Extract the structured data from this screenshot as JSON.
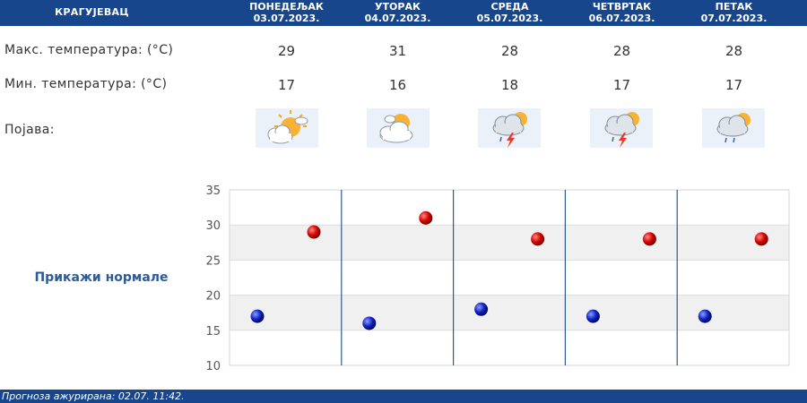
{
  "header": {
    "city": "КРАГУЈЕВАЦ"
  },
  "days": [
    {
      "name": "ПОНЕДЕЉАК",
      "date": "03.07.2023.",
      "max": "29",
      "min": "17",
      "icon": "sun-cloud-icon"
    },
    {
      "name": "УТОРАК",
      "date": "04.07.2023.",
      "max": "31",
      "min": "16",
      "icon": "cloud-sun-icon"
    },
    {
      "name": "СРЕДА",
      "date": "05.07.2023.",
      "max": "28",
      "min": "18",
      "icon": "thunderstorm-icon"
    },
    {
      "name": "ЧЕТВРТАК",
      "date": "06.07.2023.",
      "max": "28",
      "min": "17",
      "icon": "thunderstorm-icon"
    },
    {
      "name": "ПЕТАК",
      "date": "07.07.2023.",
      "max": "28",
      "min": "17",
      "icon": "rain-shower-icon"
    }
  ],
  "labels": {
    "max_temp": "Макс. температура: (°C)",
    "min_temp": "Мин. температура: (°C)",
    "phenomenon": "Појава:"
  },
  "normals_link": "Прикажи нормале",
  "footer": {
    "updated": "Прогноза ажурирана:  02.07. 11:42."
  },
  "colors": {
    "header": "#17468c",
    "max_dot": "#cc0000",
    "min_dot": "#0a1fb0"
  },
  "chart_data": {
    "type": "scatter",
    "x": [
      "03.07.2023.",
      "04.07.2023.",
      "05.07.2023.",
      "06.07.2023.",
      "07.07.2023."
    ],
    "series": [
      {
        "values": [
          29,
          31,
          28,
          28,
          28
        ]
      },
      {
        "values": [
          17,
          16,
          18,
          17,
          17
        ]
      }
    ],
    "ylim": [
      10,
      35
    ],
    "yticks": [
      "10",
      "15",
      "20",
      "25",
      "30",
      "35"
    ],
    "grid": "alternating bands"
  }
}
